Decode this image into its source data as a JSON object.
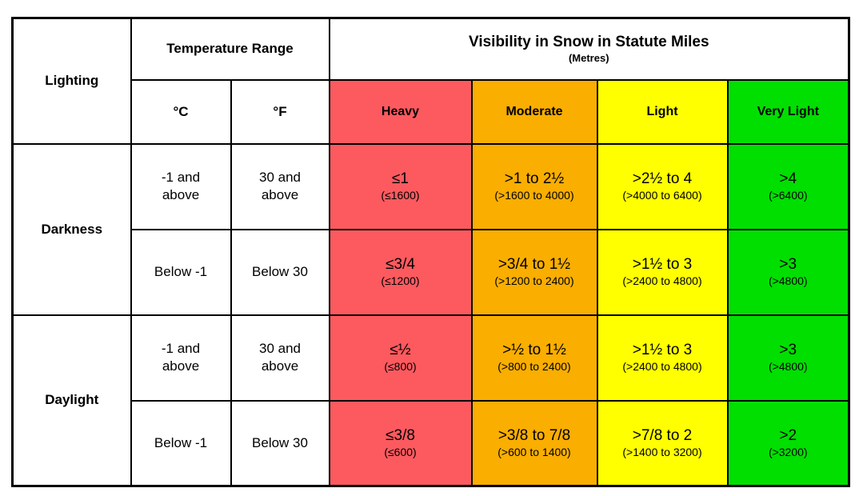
{
  "header": {
    "lighting": "Lighting",
    "temp_range": "Temperature Range",
    "celsius": "°C",
    "fahrenheit": "°F",
    "visibility_title": "Visibility in Snow in Statute Miles",
    "visibility_subtitle": "(Metres)",
    "categories": [
      {
        "label": "Heavy",
        "color": "#FC5A5F"
      },
      {
        "label": "Moderate",
        "color": "#F9AE00"
      },
      {
        "label": "Light",
        "color": "#FFFF00"
      },
      {
        "label": "Very Light",
        "color": "#00DF00"
      }
    ]
  },
  "groups": [
    {
      "lighting": "Darkness",
      "rows": [
        {
          "celsius": "-1 and\nabove",
          "fahrenheit": "30 and\nabove",
          "cells": [
            {
              "miles": "≤1",
              "metres": "(≤1600)"
            },
            {
              "miles": ">1 to 2½",
              "metres": "(>1600 to 4000)"
            },
            {
              "miles": ">2½ to 4",
              "metres": "(>4000 to 6400)"
            },
            {
              "miles": ">4",
              "metres": "(>6400)"
            }
          ]
        },
        {
          "celsius": "Below -1",
          "fahrenheit": "Below 30",
          "cells": [
            {
              "miles": "≤3/4",
              "metres": "(≤1200)"
            },
            {
              "miles": ">3/4 to 1½",
              "metres": "(>1200 to 2400)"
            },
            {
              "miles": ">1½ to 3",
              "metres": "(>2400 to 4800)"
            },
            {
              "miles": ">3",
              "metres": "(>4800)"
            }
          ]
        }
      ]
    },
    {
      "lighting": "Daylight",
      "rows": [
        {
          "celsius": "-1 and\nabove",
          "fahrenheit": "30 and\nabove",
          "cells": [
            {
              "miles": "≤½",
              "metres": "(≤800)"
            },
            {
              "miles": ">½ to 1½",
              "metres": "(>800 to 2400)"
            },
            {
              "miles": ">1½ to 3",
              "metres": "(>2400 to 4800)"
            },
            {
              "miles": ">3",
              "metres": "(>4800)"
            }
          ]
        },
        {
          "celsius": "Below -1",
          "fahrenheit": "Below 30",
          "cells": [
            {
              "miles": "≤3/8",
              "metres": "(≤600)"
            },
            {
              "miles": ">3/8 to 7/8",
              "metres": "(>600 to 1400)"
            },
            {
              "miles": ">7/8 to 2",
              "metres": "(>1400 to 3200)"
            },
            {
              "miles": ">2",
              "metres": "(>3200)"
            }
          ]
        }
      ]
    }
  ]
}
